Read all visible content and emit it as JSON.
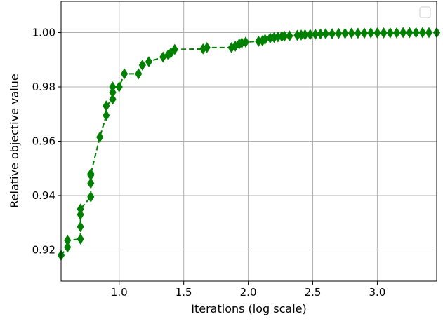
{
  "chart_data": {
    "type": "line",
    "title": "",
    "xlabel": "Iterations (log scale)",
    "ylabel": "Relative objective value",
    "xlim": [
      0.55,
      3.46
    ],
    "ylim": [
      0.9085,
      1.0115
    ],
    "xticks": [
      1.0,
      1.5,
      2.0,
      2.5,
      3.0
    ],
    "xtick_labels": [
      "1.0",
      "1.5",
      "2.0",
      "2.5",
      "3.0"
    ],
    "yticks": [
      0.92,
      0.94,
      0.96,
      0.98,
      1.0
    ],
    "ytick_labels": [
      "0.92",
      "0.94",
      "0.96",
      "0.98",
      "1.00"
    ],
    "grid": true,
    "legend": "top-right (empty)",
    "colors": {
      "series": "#008000",
      "grid": "#b0b0b0"
    },
    "series": [
      {
        "line_style": "dashed",
        "marker": "diamond",
        "x": [
          0.55,
          0.6,
          0.6,
          0.7,
          0.7,
          0.7,
          0.7,
          0.78,
          0.78,
          0.78,
          0.78,
          0.85,
          0.9,
          0.9,
          0.95,
          0.95,
          0.95,
          1.0,
          1.04,
          1.15,
          1.18,
          1.23,
          1.34,
          1.38,
          1.4,
          1.43,
          1.65,
          1.68,
          1.87,
          1.9,
          1.93,
          1.95,
          1.98,
          2.08,
          2.11,
          2.13,
          2.17,
          2.2,
          2.23,
          2.26,
          2.28,
          2.32,
          2.38,
          2.41,
          2.44,
          2.48,
          2.52,
          2.56,
          2.6,
          2.65,
          2.7,
          2.75,
          2.8,
          2.85,
          2.9,
          2.95,
          3.0,
          3.05,
          3.1,
          3.15,
          3.2,
          3.25,
          3.3,
          3.35,
          3.4,
          3.46
        ],
        "y": [
          0.918,
          0.921,
          0.9235,
          0.924,
          0.9285,
          0.933,
          0.935,
          0.9395,
          0.9445,
          0.9475,
          0.948,
          0.9615,
          0.9695,
          0.973,
          0.9755,
          0.978,
          0.98,
          0.98,
          0.9848,
          0.9848,
          0.988,
          0.9893,
          0.991,
          0.9918,
          0.9925,
          0.9938,
          0.994,
          0.9945,
          0.9945,
          0.995,
          0.9958,
          0.9962,
          0.9965,
          0.9968,
          0.997,
          0.9975,
          0.998,
          0.9982,
          0.9984,
          0.9986,
          0.9987,
          0.9988,
          0.999,
          0.9991,
          0.9992,
          0.9993,
          0.9994,
          0.9995,
          0.9996,
          0.9996,
          0.9997,
          0.9997,
          0.9998,
          0.9998,
          0.9998,
          0.9999,
          0.9999,
          0.9999,
          0.9999,
          0.9999,
          1.0,
          1.0,
          1.0,
          1.0,
          1.0,
          1.0
        ]
      }
    ]
  }
}
